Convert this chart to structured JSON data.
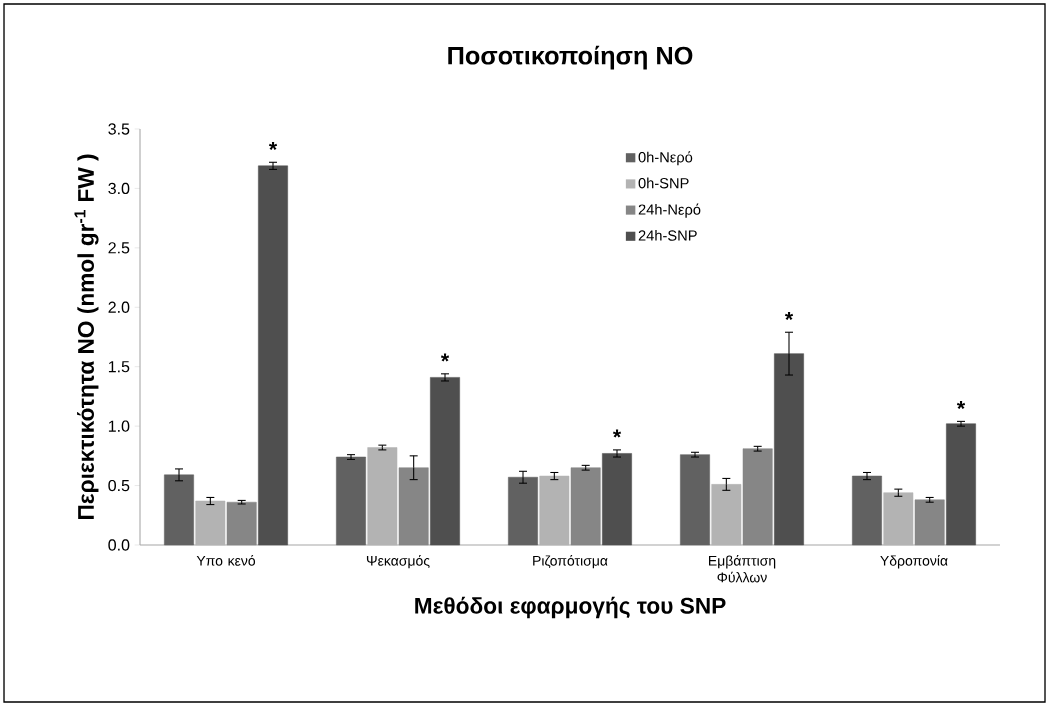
{
  "chart_data": {
    "type": "bar",
    "title": "Ποσοτικοποίηση  NO",
    "xlabel": "Μεθόδοι εφαρμογής του SNP",
    "ylabel": "Περιεκτικότητα NO (nmol gr$^{-1}$ FW )",
    "categories": [
      "Υπο κενό",
      "Ψεκασμός",
      "Ριζοπότισμα",
      "Εμβάπτιση Φύλλων",
      "Υδροπονία"
    ],
    "series": [
      {
        "name": "0h-Νερό",
        "color": "#616161",
        "values": [
          0.59,
          0.74,
          0.57,
          0.76,
          0.58
        ],
        "errors": [
          0.05,
          0.02,
          0.05,
          0.02,
          0.03
        ]
      },
      {
        "name": "0h-SNP",
        "color": "#b3b3b3",
        "values": [
          0.37,
          0.82,
          0.58,
          0.51,
          0.44
        ],
        "errors": [
          0.03,
          0.02,
          0.03,
          0.05,
          0.03
        ]
      },
      {
        "name": "24h-Νερό",
        "color": "#868686",
        "values": [
          0.36,
          0.65,
          0.65,
          0.81,
          0.38
        ],
        "errors": [
          0.015,
          0.1,
          0.02,
          0.02,
          0.02
        ]
      },
      {
        "name": "24h-SNP",
        "color": "#4f4f4f",
        "values": [
          3.19,
          1.41,
          0.77,
          1.61,
          1.02
        ],
        "errors": [
          0.03,
          0.03,
          0.03,
          0.18,
          0.02
        ]
      }
    ],
    "ylim": [
      0,
      3.5
    ],
    "yticks": [
      {
        "value": 0,
        "label": "0.0"
      },
      {
        "value": 0.5,
        "label": "0.5"
      },
      {
        "value": 1,
        "label": "1.0"
      },
      {
        "value": 1.5,
        "label": "1.5"
      },
      {
        "value": 2,
        "label": "2.0"
      },
      {
        "value": 2.5,
        "label": "2.5"
      },
      {
        "value": 3,
        "label": "3.0"
      },
      {
        "value": 3.5,
        "label": "3.5"
      }
    ],
    "grid": false,
    "legend": "top right",
    "annotations": [
      "*",
      "*",
      "*",
      "*",
      "*"
    ]
  }
}
